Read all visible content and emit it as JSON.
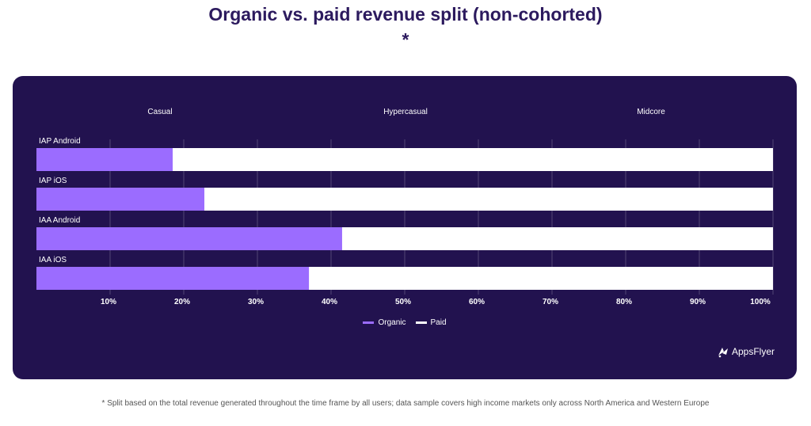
{
  "title": "Organic vs. paid revenue split (non-cohorted) *",
  "footnote": "* Split based on the total revenue generated throughout the time frame by all users; data sample covers high income markets only across North America and Western Europe",
  "brand": "AppsFlyer",
  "colors": {
    "panel": "#22124f",
    "organic": "#9b6cff",
    "paid": "#ffffff"
  },
  "chart_data": {
    "type": "bar",
    "orientation": "horizontal",
    "stacked": true,
    "column_headers": [
      "Casual",
      "Hypercasual",
      "Midcore"
    ],
    "categories": [
      "IAP Android",
      "IAP iOS",
      "IAA Android",
      "IAA iOS"
    ],
    "series": [
      {
        "name": "Organic",
        "values": [
          18.5,
          22.8,
          41.5,
          37.0
        ]
      },
      {
        "name": "Paid",
        "values": [
          81.5,
          77.2,
          58.5,
          63.0
        ]
      }
    ],
    "xticks": [
      "10%",
      "20%",
      "30%",
      "40%",
      "50%",
      "60%",
      "70%",
      "80%",
      "90%",
      "100%"
    ],
    "xlim": [
      0,
      100
    ],
    "grid": true,
    "legend": [
      "Organic",
      "Paid"
    ],
    "legend_position": "bottom-center"
  }
}
